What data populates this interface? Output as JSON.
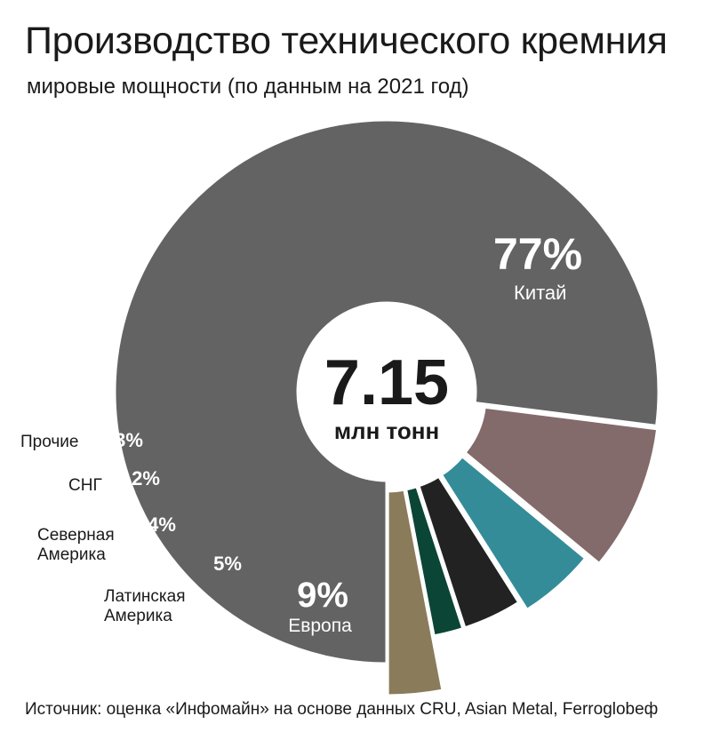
{
  "title": "Производство технического кремния",
  "subtitle": "мировые мощности (по данным на 2021 год)",
  "center": {
    "value": "7.15",
    "unit": "млн тонн"
  },
  "source": "Источник: оценка «Инфомайн» на основе данных CRU, Asian Metal, Ferroglobeф",
  "chart_data": {
    "type": "pie",
    "style": "donut",
    "total_label": "7.15 млн тонн",
    "slices": [
      {
        "name": "Китай",
        "value": 77,
        "label": "77%",
        "color": "#636363"
      },
      {
        "name": "Европа",
        "value": 9,
        "label": "9%",
        "color": "#836a6b"
      },
      {
        "name": "Латинская Америка",
        "value": 5,
        "label": "5%",
        "color": "#358c99"
      },
      {
        "name": "Северная Америка",
        "value": 4,
        "label": "4%",
        "color": "#222222"
      },
      {
        "name": "СНГ",
        "value": 2,
        "label": "2%",
        "color": "#0b4535"
      },
      {
        "name": "Прочие",
        "value": 3,
        "label": "3%",
        "color": "#8a7c5a"
      }
    ]
  }
}
